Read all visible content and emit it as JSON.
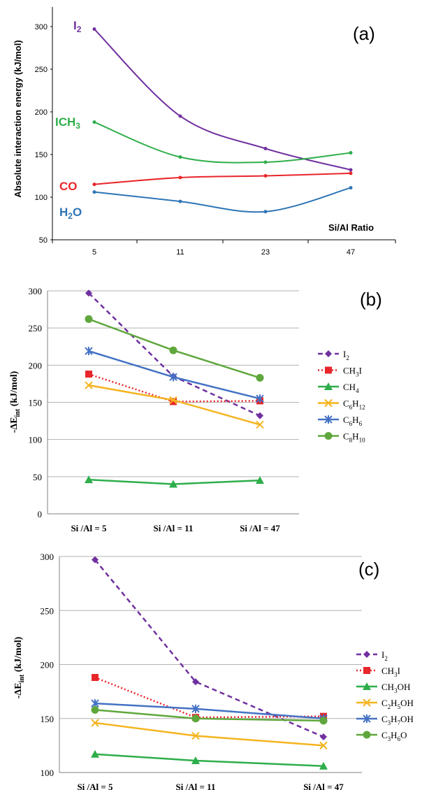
{
  "chart_data": [
    {
      "panel": "(a)",
      "type": "line",
      "smooth": true,
      "categories": [
        "5",
        "11",
        "23",
        "47"
      ],
      "ylabel": "Absolute interaction energy  (kJ/mol)",
      "xlabel": "Si/Al Ratio",
      "ylim": [
        50,
        300
      ],
      "yticks": [
        "300",
        "250",
        "200",
        "150",
        "100",
        "50"
      ],
      "grid": false,
      "series": [
        {
          "name": "I",
          "sub": "2",
          "color": "#7030a0",
          "values": [
            297,
            195,
            157,
            132
          ]
        },
        {
          "name": "ICH",
          "sub": "3",
          "color": "#2eae4a",
          "values": [
            188,
            147,
            141,
            152
          ]
        },
        {
          "name": "CO",
          "sub": "",
          "color": "#e8262b",
          "values": [
            115,
            123,
            125,
            128
          ]
        },
        {
          "name": "H",
          "sub": "2",
          "suffix": "O",
          "color": "#2e75b6",
          "values": [
            106,
            95,
            83,
            111
          ]
        }
      ]
    },
    {
      "panel": "(b)",
      "type": "line",
      "categories": [
        "Si /Al = 5",
        "Si /Al = 11",
        "Si /Al = 47"
      ],
      "ylabel": "-ΔE",
      "ylabel_sub": "int",
      "ylabel_suffix": " (kJ/mol)",
      "ylim": [
        0,
        300
      ],
      "yticks": [
        "0",
        "50",
        "100",
        "150",
        "200",
        "250",
        "300"
      ],
      "grid": true,
      "legend_position": "right",
      "series": [
        {
          "name": "I",
          "sub": "2",
          "color": "#7030a0",
          "dash": "dashed",
          "marker": "diamond",
          "values": [
            297,
            185,
            132
          ]
        },
        {
          "name": "CH",
          "sub": "3",
          "suffix": "I",
          "color": "#e8262b",
          "dash": "dotted",
          "marker": "square",
          "values": [
            188,
            151,
            152
          ]
        },
        {
          "name": "CH",
          "sub": "4",
          "color": "#2eae4a",
          "dash": "solid",
          "marker": "triangle",
          "values": [
            46,
            40,
            45
          ]
        },
        {
          "name": "C",
          "sub": "6",
          "suffix": "H",
          "sub2": "12",
          "color": "#f5b41f",
          "dash": "solid",
          "marker": "x",
          "values": [
            173,
            153,
            120
          ]
        },
        {
          "name": "C",
          "sub": "6",
          "suffix": "H",
          "sub2": "6",
          "color": "#4472c4",
          "dash": "solid",
          "marker": "star",
          "values": [
            219,
            184,
            155
          ]
        },
        {
          "name": "C",
          "sub": "8",
          "suffix": "H",
          "sub2": "10",
          "color": "#5fa73c",
          "dash": "solid",
          "marker": "circle",
          "values": [
            262,
            220,
            183
          ]
        }
      ]
    },
    {
      "panel": "(c)",
      "type": "line",
      "categories": [
        "Si /Al = 5",
        "Si /Al = 11",
        "Si /Al = 47"
      ],
      "ylabel": "-ΔE",
      "ylabel_sub": "int",
      "ylabel_suffix": " (kJ/mol)",
      "ylim": [
        100,
        300
      ],
      "yticks": [
        "100",
        "150",
        "200",
        "250",
        "300"
      ],
      "grid": true,
      "legend_position": "right",
      "series": [
        {
          "name": "I",
          "sub": "2",
          "color": "#7030a0",
          "dash": "dashed",
          "marker": "diamond",
          "values": [
            297,
            184,
            133
          ]
        },
        {
          "name": "CH",
          "sub": "3",
          "suffix": "I",
          "color": "#e8262b",
          "dash": "dotted",
          "marker": "square",
          "values": [
            188,
            151,
            152
          ]
        },
        {
          "name": "CH",
          "sub": "3",
          "suffix": "OH",
          "color": "#2eae4a",
          "dash": "solid",
          "marker": "triangle",
          "values": [
            117,
            111,
            106
          ]
        },
        {
          "name": "C",
          "sub": "2",
          "suffix": "H",
          "sub2": "5",
          "suffix2": "OH",
          "color": "#f5b41f",
          "dash": "solid",
          "marker": "x",
          "values": [
            146,
            134,
            125
          ]
        },
        {
          "name": "C",
          "sub": "3",
          "suffix": "H",
          "sub2": "7",
          "suffix2": "OH",
          "color": "#4472c4",
          "dash": "solid",
          "marker": "star",
          "values": [
            164,
            159,
            150
          ]
        },
        {
          "name": "C",
          "sub": "3",
          "suffix": "H",
          "sub2": "6",
          "suffix2": "O",
          "color": "#5fa73c",
          "dash": "solid",
          "marker": "circle",
          "values": [
            158,
            150,
            148
          ]
        }
      ]
    }
  ]
}
